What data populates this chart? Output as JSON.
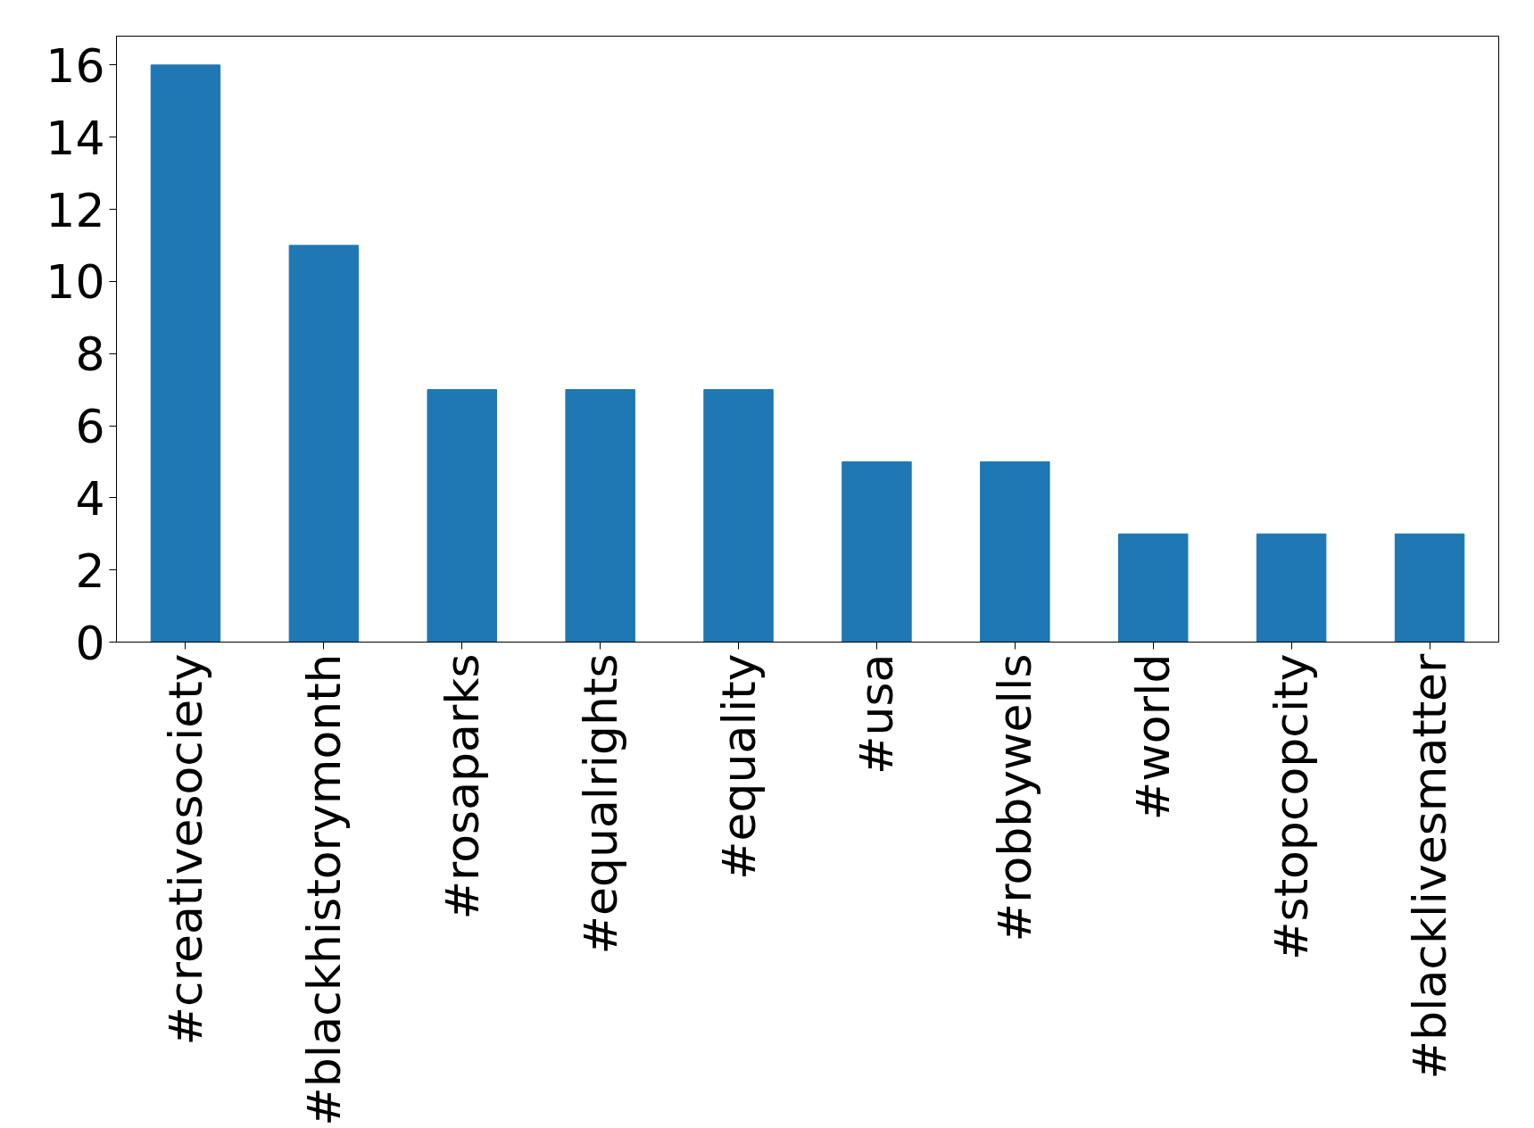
{
  "chart_data": {
    "type": "bar",
    "categories": [
      "#creativesociety",
      "#blackhistorymonth",
      "#rosaparks",
      "#equalrights",
      "#equality",
      "#usa",
      "#robbywells",
      "#world",
      "#stopcopcity",
      "#blacklivesmatter"
    ],
    "values": [
      16,
      11,
      7,
      7,
      7,
      5,
      5,
      3,
      3,
      3
    ],
    "color": "#1f77b4",
    "ylim": [
      0,
      16.8
    ],
    "yticks": [
      0,
      2,
      4,
      6,
      8,
      10,
      12,
      14,
      16
    ],
    "grid": false
  }
}
